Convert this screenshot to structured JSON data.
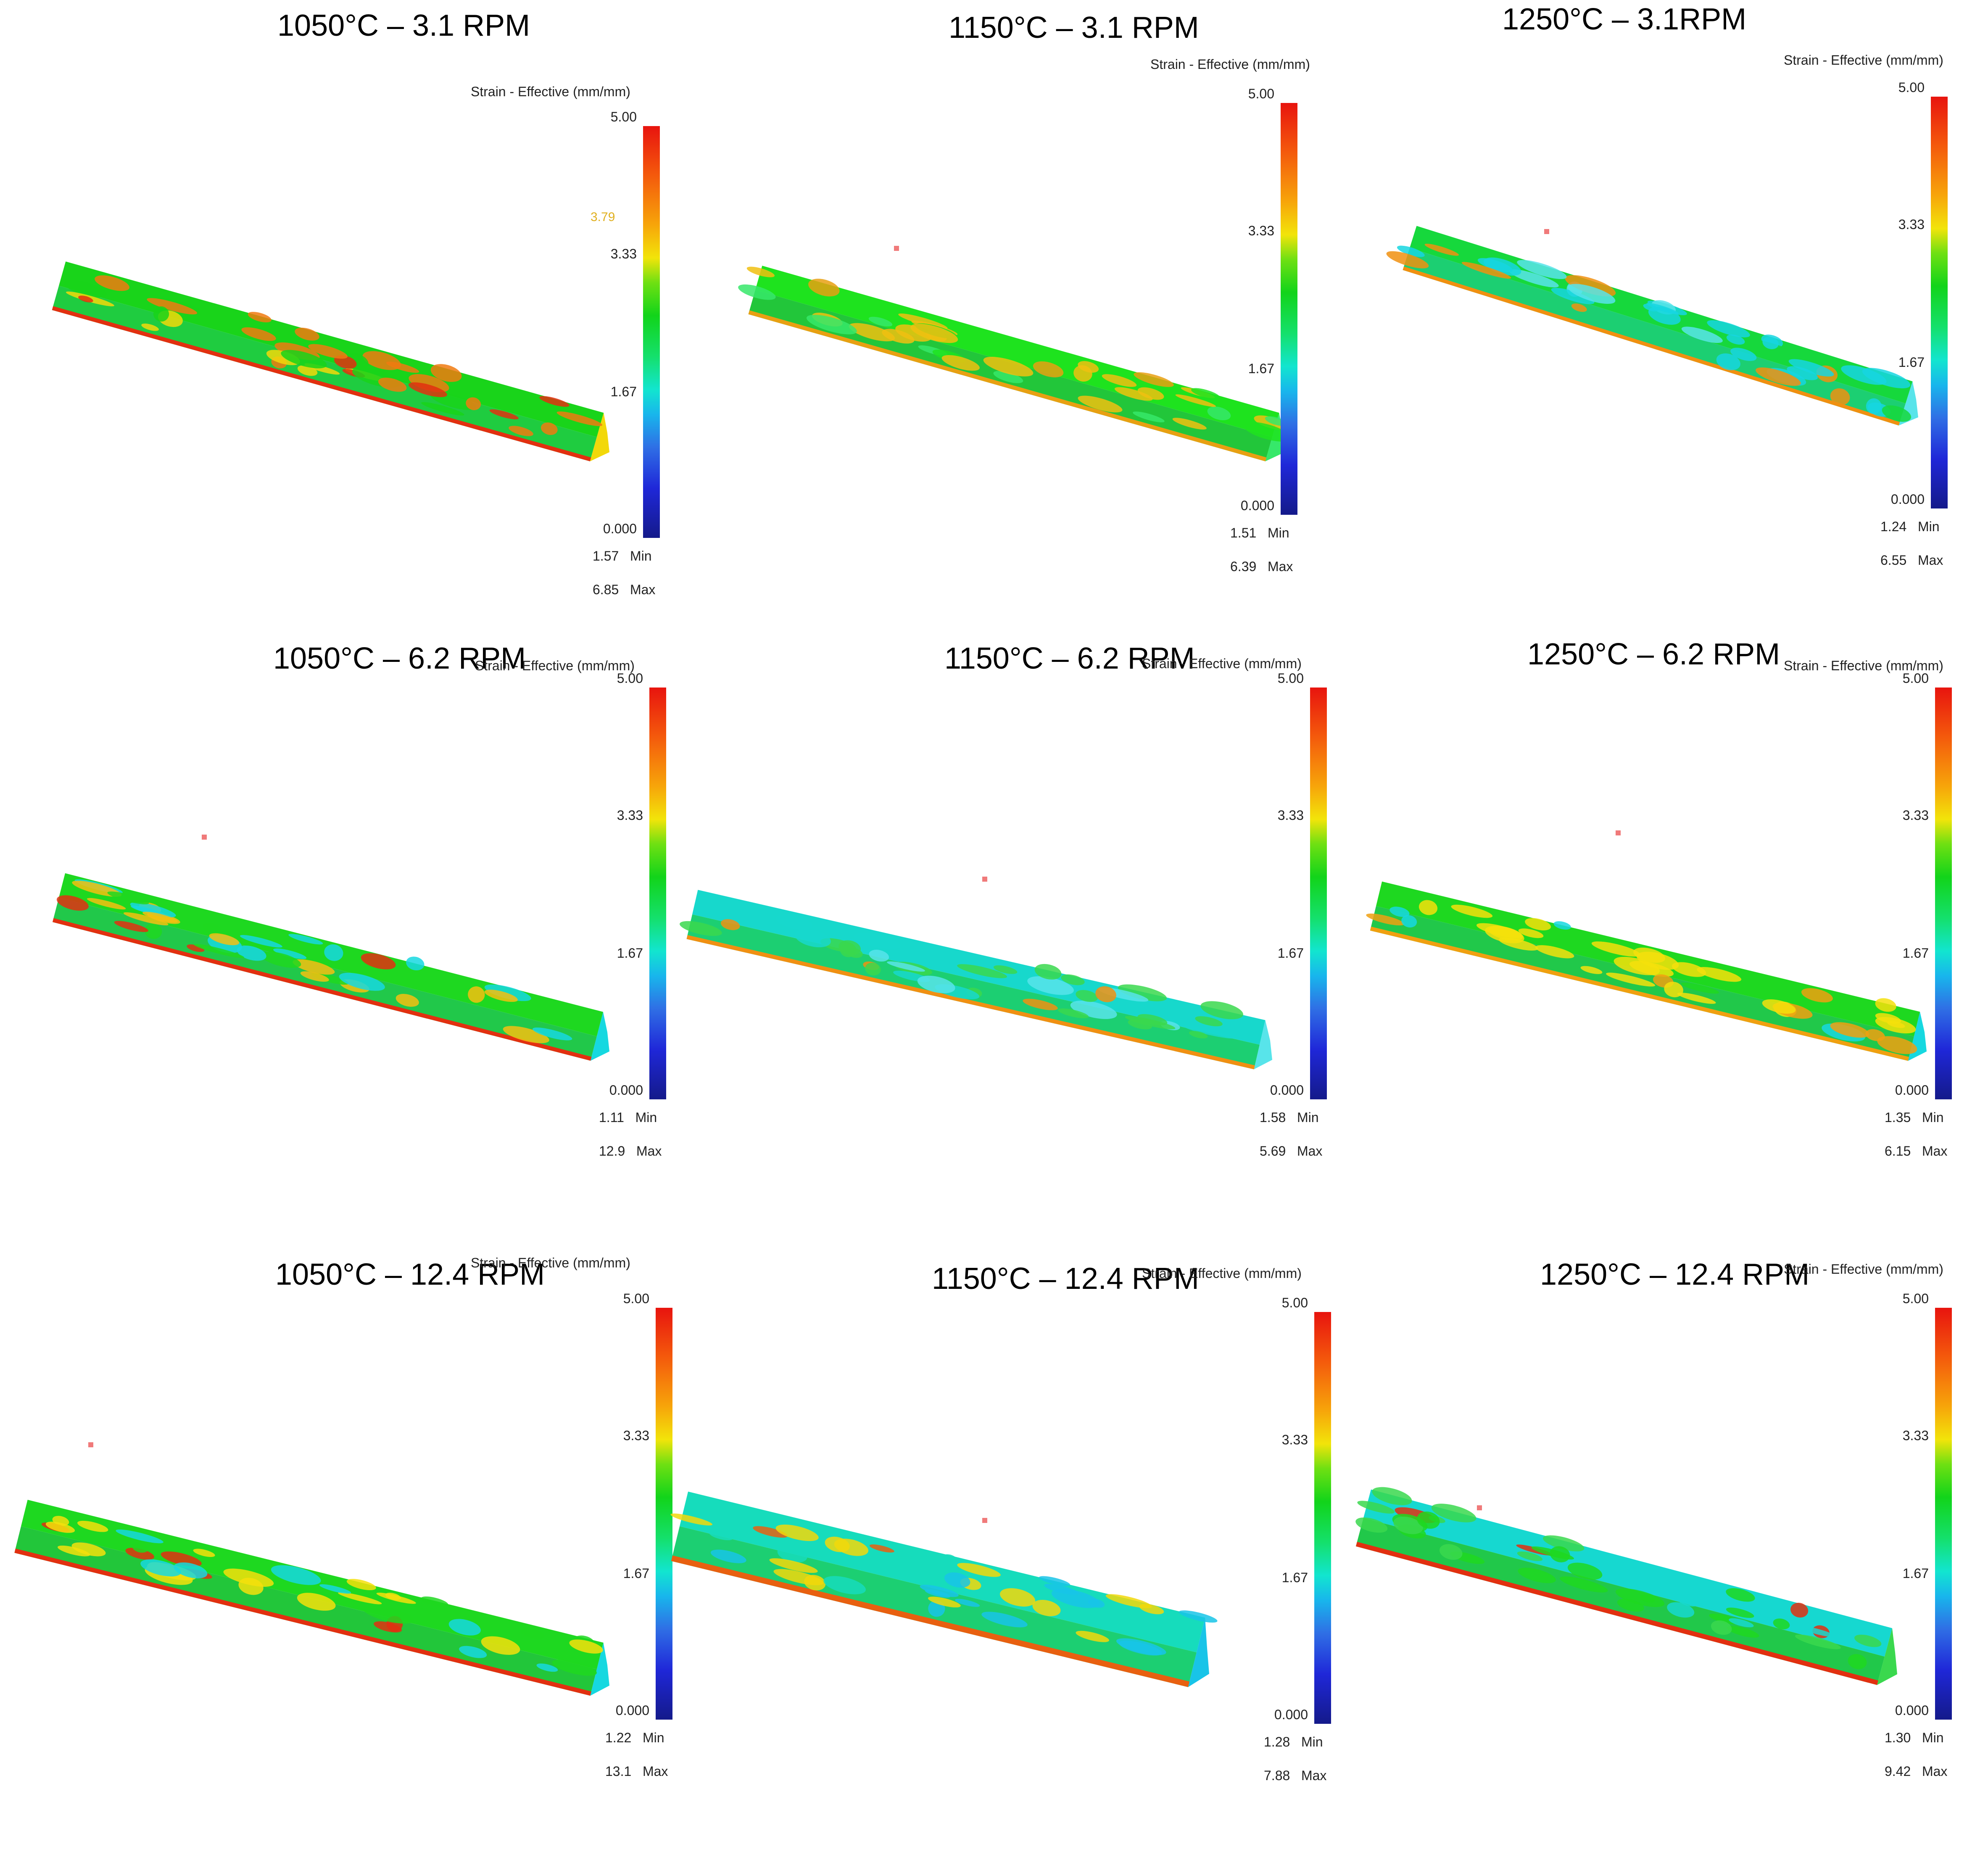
{
  "panels": [
    {
      "title": "1050°C – 3.1 RPM",
      "legend": "Strain - Effective (mm/mm)",
      "ticks": [
        "5.00",
        "3.33",
        "1.67",
        "0.000"
      ],
      "min": "1.57",
      "min_label": "Min",
      "max": "6.85",
      "max_label": "Max",
      "probe": "3.79"
    },
    {
      "title": "1150°C – 3.1 RPM",
      "legend": "Strain - Effective (mm/mm)",
      "ticks": [
        "5.00",
        "3.33",
        "1.67",
        "0.000"
      ],
      "min": "1.51",
      "min_label": "Min",
      "max": "6.39",
      "max_label": "Max"
    },
    {
      "title": "1250°C – 3.1RPM",
      "legend": "Strain - Effective (mm/mm)",
      "ticks": [
        "5.00",
        "3.33",
        "1.67",
        "0.000"
      ],
      "min": "1.24",
      "min_label": "Min",
      "max": "6.55",
      "max_label": "Max"
    },
    {
      "title": "1050°C – 6.2 RPM",
      "legend": "Strain - Effective (mm/mm)",
      "ticks": [
        "5.00",
        "3.33",
        "1.67",
        "0.000"
      ],
      "min": "1.11",
      "min_label": "Min",
      "max": "12.9",
      "max_label": "Max"
    },
    {
      "title": "1150°C – 6.2 RPM",
      "legend": "Strain - Effective (mm/mm)",
      "ticks": [
        "5.00",
        "3.33",
        "1.67",
        "0.000"
      ],
      "min": "1.58",
      "min_label": "Min",
      "max": "5.69",
      "max_label": "Max"
    },
    {
      "title": "1250°C – 6.2 RPM",
      "legend": "Strain - Effective (mm/mm)",
      "ticks": [
        "5.00",
        "3.33",
        "1.67",
        "0.000"
      ],
      "min": "1.35",
      "min_label": "Min",
      "max": "6.15",
      "max_label": "Max"
    },
    {
      "title": "1050°C – 12.4 RPM",
      "legend": "Strain - Effective (mm/mm)",
      "ticks": [
        "5.00",
        "3.33",
        "1.67",
        "0.000"
      ],
      "min": "1.22",
      "min_label": "Min",
      "max": "13.1",
      "max_label": "Max"
    },
    {
      "title": "1150°C – 12.4 RPM",
      "legend": "Strain - Effective (mm/mm)",
      "ticks": [
        "5.00",
        "3.33",
        "1.67",
        "0.000"
      ],
      "min": "1.28",
      "min_label": "Min",
      "max": "7.88",
      "max_label": "Max"
    },
    {
      "title": "1250°C – 12.4 RPM",
      "legend": "Strain - Effective (mm/mm)",
      "ticks": [
        "5.00",
        "3.33",
        "1.67",
        "0.000"
      ],
      "min": "1.30",
      "min_label": "Min",
      "max": "9.42",
      "max_label": "Max"
    }
  ],
  "colors": {
    "high": "#e8140e",
    "mid": "#12d41a",
    "low": "#141a8a",
    "cyan": "#12e5cf"
  }
}
